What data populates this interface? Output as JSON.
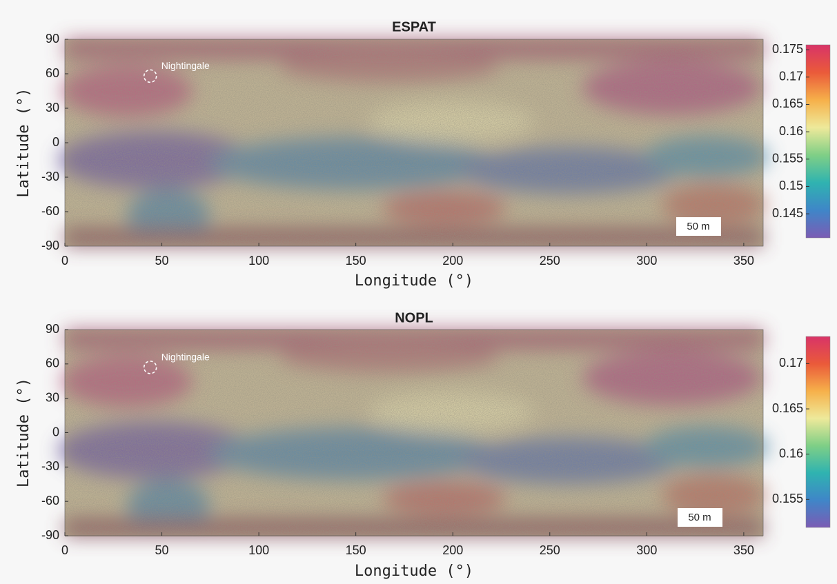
{
  "chart_data": [
    {
      "type": "map",
      "title": "ESPAT",
      "xlabel": "Longitude (°)",
      "ylabel": "Latitude (°)",
      "xlim": [
        0,
        360
      ],
      "xticks": [
        0,
        50,
        100,
        150,
        200,
        250,
        300,
        350
      ],
      "ylim": [
        -90,
        90
      ],
      "yticks": [
        -90,
        -60,
        -30,
        0,
        30,
        60,
        90
      ],
      "colorbar": {
        "lim": [
          0.1406,
          0.1759
        ],
        "ticks": [
          0.145,
          0.15,
          0.155,
          0.16,
          0.165,
          0.17,
          0.175
        ]
      },
      "colormap": [
        "#7b5cb4",
        "#3f86c8",
        "#2fb3b0",
        "#7fcf86",
        "#eee99a",
        "#f6b04a",
        "#ea5a3a",
        "#d83468"
      ],
      "nightingale": {
        "label": "Nightingale",
        "x": 44,
        "y": 58
      },
      "scale_bar": "50 m"
    },
    {
      "type": "map",
      "title": "NOPL",
      "xlabel": "Longitude (°)",
      "ylabel": "Latitude (°)",
      "xlim": [
        0,
        360
      ],
      "xticks": [
        0,
        50,
        100,
        150,
        200,
        250,
        300,
        350
      ],
      "ylim": [
        -90,
        90
      ],
      "yticks": [
        -90,
        -60,
        -30,
        0,
        30,
        60,
        90
      ],
      "colorbar": {
        "lim": [
          0.1519,
          0.173
        ],
        "ticks": [
          0.155,
          0.16,
          0.165,
          0.17
        ]
      },
      "colormap": [
        "#7b5cb4",
        "#3f86c8",
        "#2fb3b0",
        "#7fcf86",
        "#eee99a",
        "#f6b04a",
        "#ea5a3a",
        "#d83468"
      ],
      "nightingale": {
        "label": "Nightingale",
        "x": 44,
        "y": 57
      },
      "scale_bar": "50 m"
    }
  ]
}
